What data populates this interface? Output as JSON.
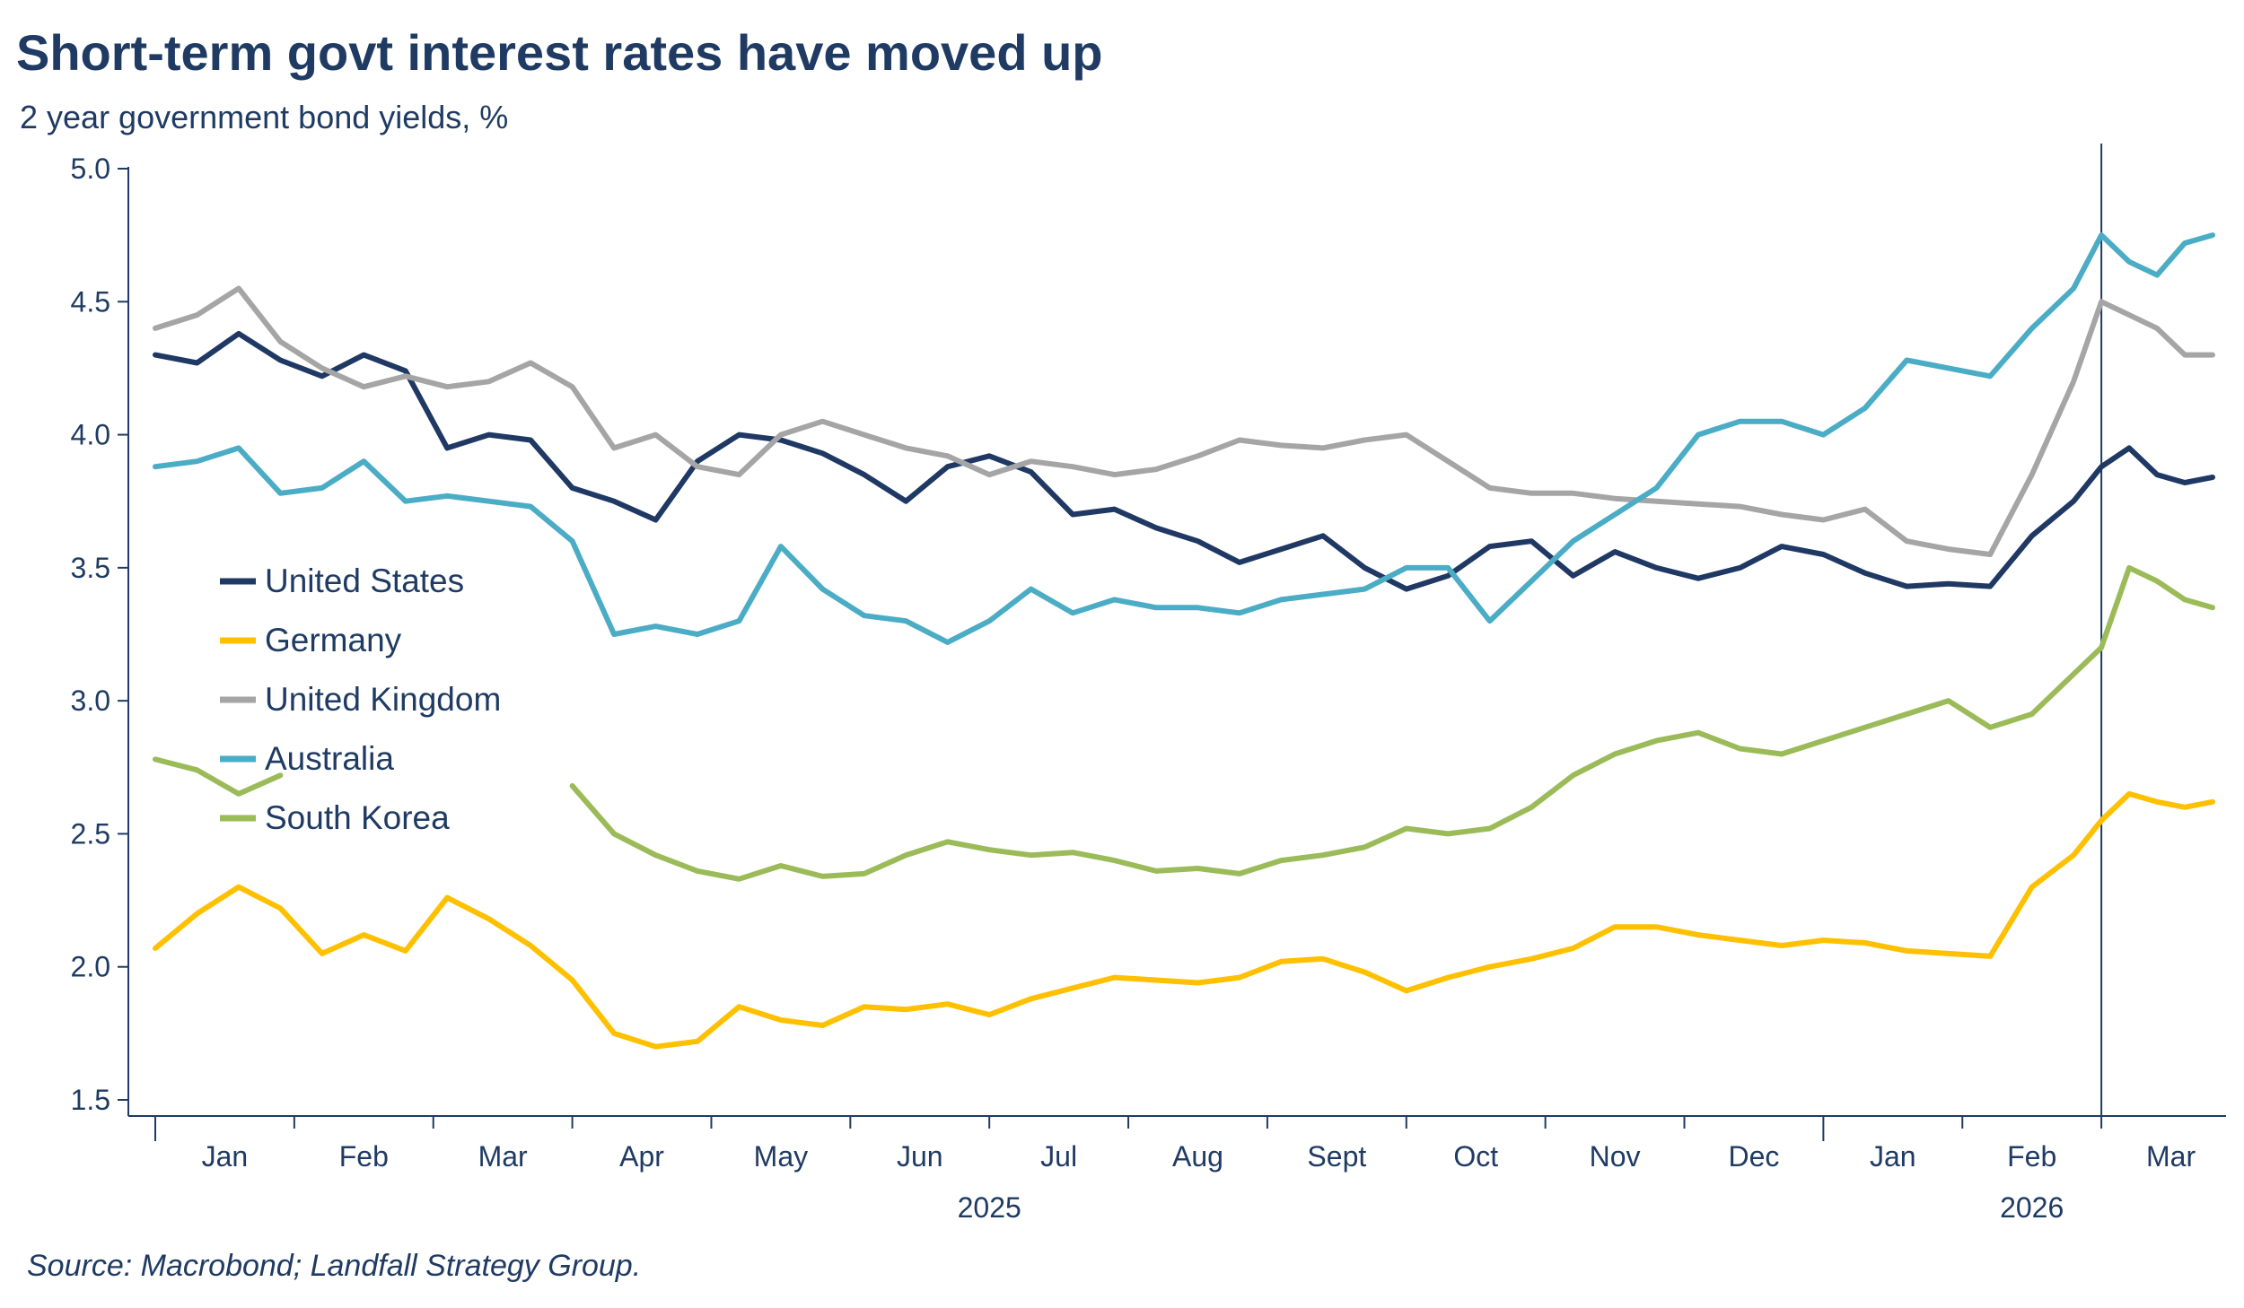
{
  "title": "Short-term govt interest rates have moved up",
  "subtitle": "2 year government bond yields, %",
  "source": "Source: Macrobond; Landfall Strategy Group.",
  "chart_data": {
    "type": "line",
    "title": "Short-term govt interest rates have moved up",
    "subtitle": "2 year government bond yields, %",
    "ylabel": "%",
    "ylim": [
      1.5,
      5.0
    ],
    "yticks": [
      "5.0",
      "4.5",
      "4.0",
      "3.5",
      "3.0",
      "2.5",
      "2.0",
      "1.5"
    ],
    "xlim": [
      0,
      14.8
    ],
    "month_labels": [
      "Jan",
      "Feb",
      "Mar",
      "Apr",
      "May",
      "Jun",
      "Jul",
      "Aug",
      "Sept",
      "Oct",
      "Nov",
      "Dec",
      "Jan",
      "Feb",
      "Mar"
    ],
    "year_labels": [
      "2025",
      "2026"
    ],
    "vertical_marker_x": 14.0,
    "x_unit": "months since 1 Jan 2025",
    "legend_position": "left-middle",
    "series": [
      {
        "name": "United States",
        "color": "#1f3864",
        "x": [
          0.0,
          0.3,
          0.6,
          0.9,
          1.2,
          1.5,
          1.8,
          2.1,
          2.4,
          2.7,
          3.0,
          3.3,
          3.6,
          3.9,
          4.2,
          4.5,
          4.8,
          5.1,
          5.4,
          5.7,
          6.0,
          6.3,
          6.6,
          6.9,
          7.2,
          7.5,
          7.8,
          8.1,
          8.4,
          8.7,
          9.0,
          9.3,
          9.6,
          9.9,
          10.2,
          10.5,
          10.8,
          11.1,
          11.4,
          11.7,
          12.0,
          12.3,
          12.6,
          12.9,
          13.2,
          13.5,
          13.8,
          14.0,
          14.2,
          14.4,
          14.6,
          14.8
        ],
        "values": [
          4.3,
          4.27,
          4.38,
          4.28,
          4.22,
          4.3,
          4.24,
          3.95,
          4.0,
          3.98,
          3.8,
          3.75,
          3.68,
          3.9,
          4.0,
          3.98,
          3.93,
          3.85,
          3.75,
          3.88,
          3.92,
          3.86,
          3.7,
          3.72,
          3.65,
          3.6,
          3.52,
          3.57,
          3.62,
          3.5,
          3.42,
          3.47,
          3.58,
          3.6,
          3.47,
          3.56,
          3.5,
          3.46,
          3.5,
          3.58,
          3.55,
          3.48,
          3.43,
          3.44,
          3.43,
          3.62,
          3.75,
          3.88,
          3.95,
          3.85,
          3.82,
          3.84
        ]
      },
      {
        "name": "Germany",
        "color": "#ffc000",
        "x": [
          0.0,
          0.3,
          0.6,
          0.9,
          1.2,
          1.5,
          1.8,
          2.1,
          2.4,
          2.7,
          3.0,
          3.3,
          3.6,
          3.9,
          4.2,
          4.5,
          4.8,
          5.1,
          5.4,
          5.7,
          6.0,
          6.3,
          6.6,
          6.9,
          7.2,
          7.5,
          7.8,
          8.1,
          8.4,
          8.7,
          9.0,
          9.3,
          9.6,
          9.9,
          10.2,
          10.5,
          10.8,
          11.1,
          11.4,
          11.7,
          12.0,
          12.3,
          12.6,
          12.9,
          13.2,
          13.5,
          13.8,
          14.0,
          14.2,
          14.4,
          14.6,
          14.8
        ],
        "values": [
          2.07,
          2.2,
          2.3,
          2.22,
          2.05,
          2.12,
          2.06,
          2.26,
          2.18,
          2.08,
          1.95,
          1.75,
          1.7,
          1.72,
          1.85,
          1.8,
          1.78,
          1.85,
          1.84,
          1.86,
          1.82,
          1.88,
          1.92,
          1.96,
          1.95,
          1.94,
          1.96,
          2.02,
          2.03,
          1.98,
          1.91,
          1.96,
          2.0,
          2.03,
          2.07,
          2.15,
          2.15,
          2.12,
          2.1,
          2.08,
          2.1,
          2.09,
          2.06,
          2.05,
          2.04,
          2.3,
          2.42,
          2.55,
          2.65,
          2.62,
          2.6,
          2.62
        ]
      },
      {
        "name": "United Kingdom",
        "color": "#a5a5a5",
        "x": [
          0.0,
          0.3,
          0.6,
          0.9,
          1.2,
          1.5,
          1.8,
          2.1,
          2.4,
          2.7,
          3.0,
          3.3,
          3.6,
          3.9,
          4.2,
          4.5,
          4.8,
          5.1,
          5.4,
          5.7,
          6.0,
          6.3,
          6.6,
          6.9,
          7.2,
          7.5,
          7.8,
          8.1,
          8.4,
          8.7,
          9.0,
          9.3,
          9.6,
          9.9,
          10.2,
          10.5,
          10.8,
          11.1,
          11.4,
          11.7,
          12.0,
          12.3,
          12.6,
          12.9,
          13.2,
          13.5,
          13.8,
          14.0,
          14.2,
          14.4,
          14.6,
          14.8
        ],
        "values": [
          4.4,
          4.45,
          4.55,
          4.35,
          4.25,
          4.18,
          4.22,
          4.18,
          4.2,
          4.27,
          4.18,
          3.95,
          4.0,
          3.88,
          3.85,
          4.0,
          4.05,
          4.0,
          3.95,
          3.92,
          3.85,
          3.9,
          3.88,
          3.85,
          3.87,
          3.92,
          3.98,
          3.96,
          3.95,
          3.98,
          4.0,
          3.9,
          3.8,
          3.78,
          3.78,
          3.76,
          3.75,
          3.74,
          3.73,
          3.7,
          3.68,
          3.72,
          3.6,
          3.57,
          3.55,
          3.85,
          4.2,
          4.5,
          4.45,
          4.4,
          4.3,
          4.3
        ]
      },
      {
        "name": "Australia",
        "color": "#4bacc6",
        "x": [
          0.0,
          0.3,
          0.6,
          0.9,
          1.2,
          1.5,
          1.8,
          2.1,
          2.4,
          2.7,
          3.0,
          3.3,
          3.6,
          3.9,
          4.2,
          4.5,
          4.8,
          5.1,
          5.4,
          5.7,
          6.0,
          6.3,
          6.6,
          6.9,
          7.2,
          7.5,
          7.8,
          8.1,
          8.4,
          8.7,
          9.0,
          9.3,
          9.6,
          9.9,
          10.2,
          10.5,
          10.8,
          11.1,
          11.4,
          11.7,
          12.0,
          12.3,
          12.6,
          12.9,
          13.2,
          13.5,
          13.8,
          14.0,
          14.2,
          14.4,
          14.6,
          14.8
        ],
        "values": [
          3.88,
          3.9,
          3.95,
          3.78,
          3.8,
          3.9,
          3.75,
          3.77,
          3.75,
          3.73,
          3.6,
          3.25,
          3.28,
          3.25,
          3.3,
          3.58,
          3.42,
          3.32,
          3.3,
          3.22,
          3.3,
          3.42,
          3.33,
          3.38,
          3.35,
          3.35,
          3.33,
          3.38,
          3.4,
          3.42,
          3.5,
          3.5,
          3.3,
          3.45,
          3.6,
          3.7,
          3.8,
          4.0,
          4.05,
          4.05,
          4.0,
          4.1,
          4.28,
          4.25,
          4.22,
          4.4,
          4.55,
          4.75,
          4.65,
          4.6,
          4.72,
          4.75
        ]
      },
      {
        "name": "South Korea",
        "color": "#9bbb59",
        "x": [
          0.0,
          0.3,
          0.6,
          0.9,
          3.0,
          3.3,
          3.6,
          3.9,
          4.2,
          4.5,
          4.8,
          5.1,
          5.4,
          5.7,
          6.0,
          6.3,
          6.6,
          6.9,
          7.2,
          7.5,
          7.8,
          8.1,
          8.4,
          8.7,
          9.0,
          9.3,
          9.6,
          9.9,
          10.2,
          10.5,
          10.8,
          11.1,
          11.4,
          11.7,
          12.0,
          12.3,
          12.6,
          12.9,
          13.2,
          13.5,
          13.8,
          14.0,
          14.2,
          14.4,
          14.6,
          14.8
        ],
        "values": [
          2.78,
          2.74,
          2.65,
          2.72,
          2.68,
          2.5,
          2.42,
          2.36,
          2.33,
          2.38,
          2.34,
          2.35,
          2.42,
          2.47,
          2.44,
          2.42,
          2.43,
          2.4,
          2.36,
          2.37,
          2.35,
          2.4,
          2.42,
          2.45,
          2.52,
          2.5,
          2.52,
          2.6,
          2.72,
          2.8,
          2.85,
          2.88,
          2.82,
          2.8,
          2.85,
          2.9,
          2.95,
          3.0,
          2.9,
          2.95,
          3.1,
          3.2,
          3.5,
          3.45,
          3.38,
          3.35
        ]
      }
    ]
  }
}
